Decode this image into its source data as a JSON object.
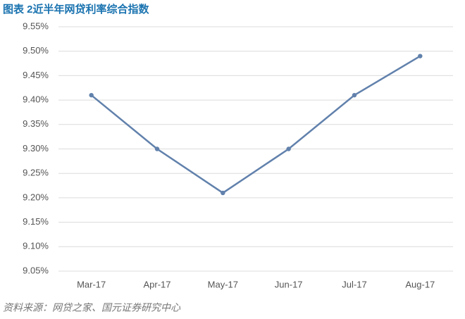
{
  "chart_data": {
    "type": "line",
    "title": "图表 2近半年网贷利率综合指数",
    "source": "资料来源：网贷之家、国元证券研究中心",
    "categories": [
      "Mar-17",
      "Apr-17",
      "May-17",
      "Jun-17",
      "Jul-17",
      "Aug-17"
    ],
    "values": [
      9.41,
      9.3,
      9.21,
      9.3,
      9.41,
      9.49
    ],
    "color": "#6181ac",
    "ylim": [
      9.05,
      9.55
    ],
    "yticks": [
      {
        "value": 9.05,
        "label": "9.05%"
      },
      {
        "value": 9.1,
        "label": "9.10%"
      },
      {
        "value": 9.15,
        "label": "9.15%"
      },
      {
        "value": 9.2,
        "label": "9.20%"
      },
      {
        "value": 9.25,
        "label": "9.25%"
      },
      {
        "value": 9.3,
        "label": "9.30%"
      },
      {
        "value": 9.35,
        "label": "9.35%"
      },
      {
        "value": 9.4,
        "label": "9.40%"
      },
      {
        "value": 9.45,
        "label": "9.45%"
      },
      {
        "value": 9.5,
        "label": "9.50%"
      },
      {
        "value": 9.55,
        "label": "9.55%"
      }
    ],
    "grid": true
  }
}
